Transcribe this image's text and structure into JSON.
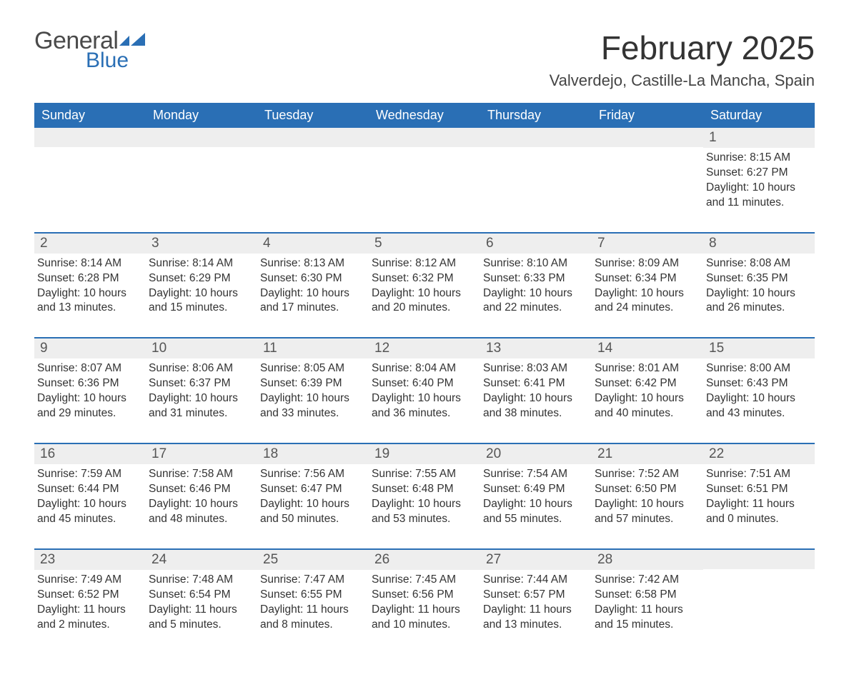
{
  "logo": {
    "text_top": "General",
    "text_bottom": "Blue",
    "color_gray": "#4a4a4a",
    "color_blue": "#2a6fb5"
  },
  "title": "February 2025",
  "location": "Valverdejo, Castille-La Mancha, Spain",
  "colors": {
    "header_bg": "#2a6fb5",
    "header_text": "#ffffff",
    "daynum_bg": "#eeeeee",
    "week_border": "#2a6fb5",
    "body_text": "#333333"
  },
  "weekdays": [
    "Sunday",
    "Monday",
    "Tuesday",
    "Wednesday",
    "Thursday",
    "Friday",
    "Saturday"
  ],
  "weeks": [
    [
      {
        "day": null
      },
      {
        "day": null
      },
      {
        "day": null
      },
      {
        "day": null
      },
      {
        "day": null
      },
      {
        "day": null
      },
      {
        "day": 1,
        "sunrise": "8:15 AM",
        "sunset": "6:27 PM",
        "daylight": "10 hours and 11 minutes."
      }
    ],
    [
      {
        "day": 2,
        "sunrise": "8:14 AM",
        "sunset": "6:28 PM",
        "daylight": "10 hours and 13 minutes."
      },
      {
        "day": 3,
        "sunrise": "8:14 AM",
        "sunset": "6:29 PM",
        "daylight": "10 hours and 15 minutes."
      },
      {
        "day": 4,
        "sunrise": "8:13 AM",
        "sunset": "6:30 PM",
        "daylight": "10 hours and 17 minutes."
      },
      {
        "day": 5,
        "sunrise": "8:12 AM",
        "sunset": "6:32 PM",
        "daylight": "10 hours and 20 minutes."
      },
      {
        "day": 6,
        "sunrise": "8:10 AM",
        "sunset": "6:33 PM",
        "daylight": "10 hours and 22 minutes."
      },
      {
        "day": 7,
        "sunrise": "8:09 AM",
        "sunset": "6:34 PM",
        "daylight": "10 hours and 24 minutes."
      },
      {
        "day": 8,
        "sunrise": "8:08 AM",
        "sunset": "6:35 PM",
        "daylight": "10 hours and 26 minutes."
      }
    ],
    [
      {
        "day": 9,
        "sunrise": "8:07 AM",
        "sunset": "6:36 PM",
        "daylight": "10 hours and 29 minutes."
      },
      {
        "day": 10,
        "sunrise": "8:06 AM",
        "sunset": "6:37 PM",
        "daylight": "10 hours and 31 minutes."
      },
      {
        "day": 11,
        "sunrise": "8:05 AM",
        "sunset": "6:39 PM",
        "daylight": "10 hours and 33 minutes."
      },
      {
        "day": 12,
        "sunrise": "8:04 AM",
        "sunset": "6:40 PM",
        "daylight": "10 hours and 36 minutes."
      },
      {
        "day": 13,
        "sunrise": "8:03 AM",
        "sunset": "6:41 PM",
        "daylight": "10 hours and 38 minutes."
      },
      {
        "day": 14,
        "sunrise": "8:01 AM",
        "sunset": "6:42 PM",
        "daylight": "10 hours and 40 minutes."
      },
      {
        "day": 15,
        "sunrise": "8:00 AM",
        "sunset": "6:43 PM",
        "daylight": "10 hours and 43 minutes."
      }
    ],
    [
      {
        "day": 16,
        "sunrise": "7:59 AM",
        "sunset": "6:44 PM",
        "daylight": "10 hours and 45 minutes."
      },
      {
        "day": 17,
        "sunrise": "7:58 AM",
        "sunset": "6:46 PM",
        "daylight": "10 hours and 48 minutes."
      },
      {
        "day": 18,
        "sunrise": "7:56 AM",
        "sunset": "6:47 PM",
        "daylight": "10 hours and 50 minutes."
      },
      {
        "day": 19,
        "sunrise": "7:55 AM",
        "sunset": "6:48 PM",
        "daylight": "10 hours and 53 minutes."
      },
      {
        "day": 20,
        "sunrise": "7:54 AM",
        "sunset": "6:49 PM",
        "daylight": "10 hours and 55 minutes."
      },
      {
        "day": 21,
        "sunrise": "7:52 AM",
        "sunset": "6:50 PM",
        "daylight": "10 hours and 57 minutes."
      },
      {
        "day": 22,
        "sunrise": "7:51 AM",
        "sunset": "6:51 PM",
        "daylight": "11 hours and 0 minutes."
      }
    ],
    [
      {
        "day": 23,
        "sunrise": "7:49 AM",
        "sunset": "6:52 PM",
        "daylight": "11 hours and 2 minutes."
      },
      {
        "day": 24,
        "sunrise": "7:48 AM",
        "sunset": "6:54 PM",
        "daylight": "11 hours and 5 minutes."
      },
      {
        "day": 25,
        "sunrise": "7:47 AM",
        "sunset": "6:55 PM",
        "daylight": "11 hours and 8 minutes."
      },
      {
        "day": 26,
        "sunrise": "7:45 AM",
        "sunset": "6:56 PM",
        "daylight": "11 hours and 10 minutes."
      },
      {
        "day": 27,
        "sunrise": "7:44 AM",
        "sunset": "6:57 PM",
        "daylight": "11 hours and 13 minutes."
      },
      {
        "day": 28,
        "sunrise": "7:42 AM",
        "sunset": "6:58 PM",
        "daylight": "11 hours and 15 minutes."
      },
      {
        "day": null
      }
    ]
  ],
  "labels": {
    "sunrise": "Sunrise:",
    "sunset": "Sunset:",
    "daylight": "Daylight:"
  }
}
